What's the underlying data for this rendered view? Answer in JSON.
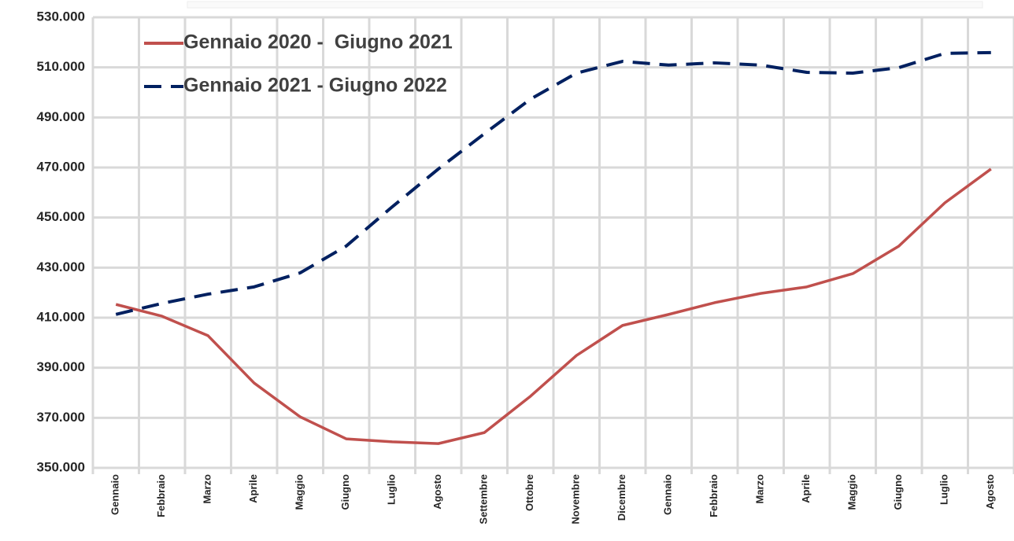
{
  "chart_data": {
    "type": "line",
    "categories": [
      "Gennaio",
      "Febbraio",
      "Marzo",
      "Aprile",
      "Maggio",
      "Giugno",
      "Luglio",
      "Agosto",
      "Settembre",
      "Ottobre",
      "Novembre",
      "Dicembre",
      "Gennaio",
      "Febbraio",
      "Marzo",
      "Aprile",
      "Maggio",
      "Giugno",
      "Luglio",
      "Agosto"
    ],
    "series": [
      {
        "name": "Gennaio 2020 -  Giugno 2021",
        "color": "#c0504d",
        "dash": "solid",
        "values": [
          415300,
          410600,
          402800,
          383900,
          370400,
          361600,
          360400,
          359700,
          364100,
          378600,
          394900,
          406900,
          411300,
          416000,
          419700,
          422300,
          427600,
          438600,
          455900,
          469400
        ]
      },
      {
        "name": "Gennaio 2021 - Giugno 2022",
        "color": "#002060",
        "dash": "dashed",
        "values": [
          411300,
          415700,
          419400,
          422300,
          427900,
          438600,
          454300,
          469400,
          483500,
          497300,
          507700,
          512400,
          510900,
          511800,
          510900,
          508000,
          507700,
          509900,
          515600,
          515900
        ]
      }
    ],
    "ylim": [
      350000,
      530000
    ],
    "yticks": [
      {
        "value": 350000,
        "label": "350.000"
      },
      {
        "value": 370000,
        "label": "370.000"
      },
      {
        "value": 390000,
        "label": "390.000"
      },
      {
        "value": 410000,
        "label": "410.000"
      },
      {
        "value": 430000,
        "label": "430.000"
      },
      {
        "value": 450000,
        "label": "450.000"
      },
      {
        "value": 470000,
        "label": "470.000"
      },
      {
        "value": 490000,
        "label": "490.000"
      },
      {
        "value": 510000,
        "label": "510.000"
      },
      {
        "value": 530000,
        "label": "530.000"
      }
    ],
    "grid": true,
    "legend": "top-left"
  }
}
